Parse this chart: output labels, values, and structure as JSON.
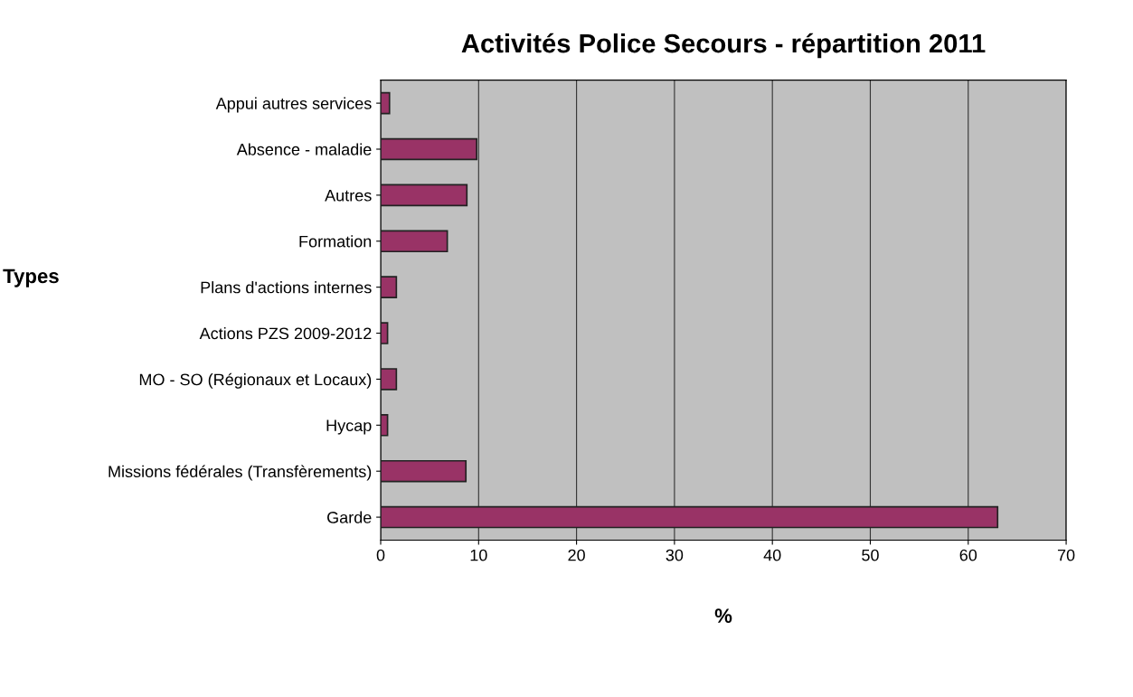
{
  "chart_data": {
    "type": "bar",
    "orientation": "horizontal",
    "title": "Activités Police Secours - répartition 2011",
    "xlabel": "%",
    "ylabel": "Types",
    "categories": [
      "Appui autres services",
      "Absence - maladie",
      "Autres",
      "Formation",
      "Plans d'actions internes",
      "Actions PZS 2009-2012",
      "MO - SO (Régionaux et Locaux)",
      "Hycap",
      "Missions fédérales (Transfèrements)",
      "Garde"
    ],
    "values": [
      0.9,
      9.8,
      8.8,
      6.8,
      1.6,
      0.7,
      1.6,
      0.7,
      8.7,
      63
    ],
    "color": "#993366",
    "xlim": [
      0,
      70
    ],
    "xticks": [
      0,
      10,
      20,
      30,
      40,
      50,
      60,
      70
    ],
    "grid": "x"
  }
}
